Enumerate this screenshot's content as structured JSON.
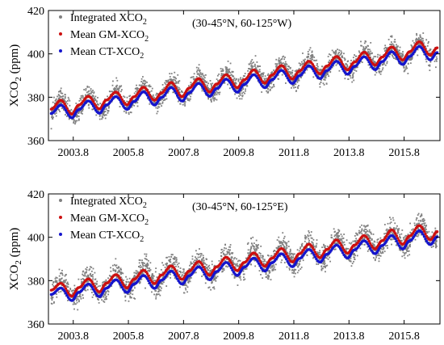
{
  "figure": {
    "panels": [
      {
        "region": "(30-45°N, 60-125°W)",
        "ylabel_parts": [
          "XCO",
          "2",
          " (ppm)"
        ],
        "legend": [
          {
            "label": "Integrated XCO",
            "sub": "2",
            "color": "#808080"
          },
          {
            "label": "Mean GM-XCO",
            "sub": "2",
            "color": "#cc1010"
          },
          {
            "label": "Mean CT-XCO",
            "sub": "2",
            "color": "#1515cc"
          }
        ]
      },
      {
        "region": "(30-45°N, 60-125°E)",
        "ylabel_parts": [
          "XCO",
          "2",
          " (ppm)"
        ],
        "legend": [
          {
            "label": "Integrated XCO",
            "sub": "2",
            "color": "#808080"
          },
          {
            "label": "Mean GM-XCO",
            "sub": "2",
            "color": "#cc1010"
          },
          {
            "label": "Mean CT-XCO",
            "sub": "2",
            "color": "#1515cc"
          }
        ]
      }
    ]
  },
  "chart_data": [
    {
      "type": "scatter",
      "title": "",
      "xlabel": "",
      "ylabel": "XCO2 (ppm)",
      "xlim": [
        2002.9,
        2017.1
      ],
      "ylim": [
        360,
        420
      ],
      "xticks": [
        2003.8,
        2005.8,
        2007.8,
        2009.8,
        2011.8,
        2013.8,
        2015.8
      ],
      "xtick_labels": [
        "2003.8",
        "2005.8",
        "2007.8",
        "2009.8",
        "2011.8",
        "2013.8",
        "2015.8"
      ],
      "yticks": [
        360,
        380,
        400,
        420
      ],
      "grid": false,
      "legend_position": "top-left",
      "annotation": "(30-45°N, 60-125°W)",
      "series": [
        {
          "name": "Integrated XCO2",
          "kind": "scatter",
          "color": "#808080",
          "model": {
            "base_2003": 374.0,
            "trend_ppm_per_yr": 2.05,
            "seasonal_amplitude": 4.2,
            "peak_phase": 0.35,
            "scatter_sd": 2.4
          },
          "envelope": {
            "x": [
              2003,
              2005,
              2007,
              2009,
              2011,
              2013,
              2015,
              2017
            ],
            "ymin": [
              364,
              369,
              372,
              376,
              380,
              384,
              388,
              392
            ],
            "ymax": [
              388,
              391,
              393,
              397,
              400,
              404,
              408,
              411
            ]
          }
        },
        {
          "name": "Mean GM-XCO2",
          "kind": "mean",
          "color": "#cc1010",
          "x": [
            2003.0,
            2003.35,
            2003.75,
            2004.0,
            2004.35,
            2004.75,
            2005.0,
            2005.35,
            2005.75,
            2006.0,
            2006.35,
            2006.75,
            2007.0,
            2007.35,
            2007.75,
            2008.0,
            2008.35,
            2008.75,
            2009.0,
            2009.35,
            2009.75,
            2010.0,
            2010.35,
            2010.75,
            2011.0,
            2011.35,
            2011.75,
            2012.0,
            2012.35,
            2012.75,
            2013.0,
            2013.35,
            2013.75,
            2014.0,
            2014.35,
            2014.75,
            2015.0,
            2015.35,
            2015.75,
            2016.0,
            2016.35,
            2016.75,
            2017.0
          ],
          "y": [
            374.5,
            378.6,
            372.2,
            376.4,
            380.4,
            374.6,
            378.7,
            382.4,
            376.5,
            380.2,
            384.6,
            378.6,
            382.0,
            386.8,
            380.2,
            384.2,
            388.6,
            382.4,
            386.1,
            390.4,
            384.4,
            388.0,
            392.6,
            386.5,
            390.2,
            394.6,
            388.4,
            392.1,
            396.6,
            390.8,
            394.4,
            398.8,
            392.6,
            396.2,
            400.8,
            394.8,
            398.5,
            403.2,
            397.2,
            401.0,
            405.6,
            399.4,
            402.8
          ]
        },
        {
          "name": "Mean CT-XCO2",
          "kind": "mean",
          "color": "#1515cc",
          "x": [
            2003.0,
            2003.35,
            2003.75,
            2004.0,
            2004.35,
            2004.75,
            2005.0,
            2005.35,
            2005.75,
            2006.0,
            2006.35,
            2006.75,
            2007.0,
            2007.35,
            2007.75,
            2008.0,
            2008.35,
            2008.75,
            2009.0,
            2009.35,
            2009.75,
            2010.0,
            2010.35,
            2010.75,
            2011.0,
            2011.35,
            2011.75,
            2012.0,
            2012.35,
            2012.75,
            2013.0,
            2013.35,
            2013.75,
            2014.0,
            2014.35,
            2014.75,
            2015.0,
            2015.35,
            2015.75,
            2016.0,
            2016.35,
            2016.75,
            2017.0
          ],
          "y": [
            372.5,
            376.4,
            370.5,
            374.3,
            378.3,
            372.6,
            376.4,
            380.3,
            374.4,
            378.0,
            382.5,
            376.4,
            379.9,
            384.5,
            378.2,
            382.0,
            386.4,
            380.4,
            384.0,
            388.3,
            382.3,
            385.9,
            390.4,
            384.4,
            388.0,
            392.4,
            386.3,
            389.9,
            394.5,
            388.6,
            392.3,
            396.6,
            390.6,
            394.2,
            398.7,
            392.7,
            396.4,
            401.0,
            395.1,
            398.8,
            403.4,
            397.2,
            400.6
          ]
        }
      ]
    },
    {
      "type": "scatter",
      "title": "",
      "xlabel": "",
      "ylabel": "XCO2 (ppm)",
      "xlim": [
        2002.9,
        2017.1
      ],
      "ylim": [
        360,
        420
      ],
      "xticks": [
        2003.8,
        2005.8,
        2007.8,
        2009.8,
        2011.8,
        2013.8,
        2015.8
      ],
      "xtick_labels": [
        "2003.8",
        "2005.8",
        "2007.8",
        "2009.8",
        "2011.8",
        "2013.8",
        "2015.8"
      ],
      "yticks": [
        360,
        380,
        400,
        420
      ],
      "grid": false,
      "legend_position": "top-left",
      "annotation": "(30-45°N, 60-125°E)",
      "series": [
        {
          "name": "Integrated XCO2",
          "kind": "scatter",
          "color": "#808080",
          "model": {
            "base_2003": 374.5,
            "trend_ppm_per_yr": 2.0,
            "seasonal_amplitude": 4.5,
            "peak_phase": 0.35,
            "scatter_sd": 2.8
          },
          "envelope": {
            "x": [
              2003,
              2005,
              2007,
              2009,
              2011,
              2013,
              2015,
              2017
            ],
            "ymin": [
              364,
              368,
              372,
              376,
              379,
              383,
              387,
              391
            ],
            "ymax": [
              386,
              390,
              394,
              398,
              402,
              406,
              410,
              413
            ]
          }
        },
        {
          "name": "Mean GM-XCO2",
          "kind": "mean",
          "color": "#cc1010",
          "x": [
            2003.0,
            2003.35,
            2003.75,
            2004.0,
            2004.35,
            2004.75,
            2005.0,
            2005.35,
            2005.75,
            2006.0,
            2006.35,
            2006.75,
            2007.0,
            2007.35,
            2007.75,
            2008.0,
            2008.35,
            2008.75,
            2009.0,
            2009.35,
            2009.75,
            2010.0,
            2010.35,
            2010.75,
            2011.0,
            2011.35,
            2011.75,
            2012.0,
            2012.35,
            2012.75,
            2013.0,
            2013.35,
            2013.75,
            2014.0,
            2014.35,
            2014.75,
            2015.0,
            2015.35,
            2015.75,
            2016.0,
            2016.35,
            2016.75,
            2017.0
          ],
          "y": [
            375.6,
            378.8,
            372.8,
            376.8,
            380.8,
            374.8,
            378.8,
            382.8,
            376.6,
            380.6,
            384.8,
            378.6,
            382.6,
            386.8,
            380.6,
            384.4,
            388.8,
            382.5,
            386.4,
            390.8,
            384.6,
            388.4,
            392.8,
            386.6,
            390.3,
            394.8,
            388.6,
            392.4,
            396.8,
            390.6,
            394.4,
            398.8,
            392.6,
            396.4,
            400.8,
            394.6,
            398.4,
            403.4,
            396.8,
            400.6,
            405.4,
            398.8,
            402.6
          ]
        },
        {
          "name": "Mean CT-XCO2",
          "kind": "mean",
          "color": "#1515cc",
          "x": [
            2003.0,
            2003.35,
            2003.75,
            2004.0,
            2004.35,
            2004.75,
            2005.0,
            2005.35,
            2005.75,
            2006.0,
            2006.35,
            2006.75,
            2007.0,
            2007.35,
            2007.75,
            2008.0,
            2008.35,
            2008.75,
            2009.0,
            2009.35,
            2009.75,
            2010.0,
            2010.35,
            2010.75,
            2011.0,
            2011.35,
            2011.75,
            2012.0,
            2012.35,
            2012.75,
            2013.0,
            2013.35,
            2013.75,
            2014.0,
            2014.35,
            2014.75,
            2015.0,
            2015.35,
            2015.75,
            2016.0,
            2016.35,
            2016.75,
            2017.0
          ],
          "y": [
            373.6,
            376.6,
            370.8,
            374.6,
            378.4,
            372.6,
            376.5,
            380.4,
            374.5,
            378.4,
            382.4,
            376.4,
            380.2,
            384.4,
            378.4,
            382.2,
            386.4,
            380.4,
            384.2,
            388.4,
            382.4,
            386.2,
            390.4,
            384.4,
            388.2,
            392.4,
            386.4,
            390.2,
            394.4,
            388.5,
            392.2,
            396.4,
            390.4,
            394.2,
            398.4,
            392.4,
            396.2,
            400.8,
            394.6,
            398.4,
            403.0,
            396.6,
            400.2
          ]
        }
      ]
    }
  ]
}
